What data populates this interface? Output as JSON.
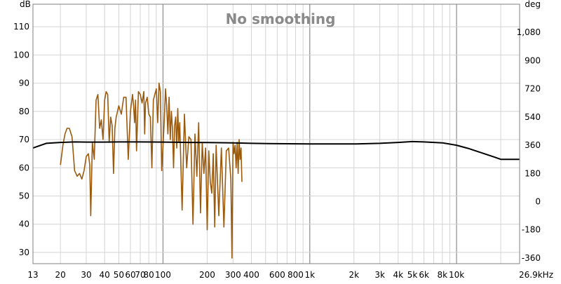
{
  "chart_data": {
    "type": "line",
    "title": "No smoothing",
    "left_unit": "dB",
    "right_unit": "deg",
    "x_scale": "log",
    "xlim": [
      13,
      26900
    ],
    "ylim_left": [
      26,
      118
    ],
    "ylim_right": [
      -396,
      1260
    ],
    "left_ticks": [
      30,
      40,
      50,
      60,
      70,
      80,
      90,
      100,
      110
    ],
    "right_ticks": [
      -360,
      -180,
      0,
      180,
      360,
      540,
      720,
      900,
      1080
    ],
    "right_tick_labels": [
      "-360",
      "-180",
      "0",
      "180",
      "360",
      "540",
      "720",
      "900",
      "1,080"
    ],
    "x_ticks": [
      13,
      20,
      30,
      40,
      50,
      60,
      70,
      80,
      100,
      200,
      300,
      400,
      600,
      800,
      1000,
      2000,
      3000,
      4000,
      5000,
      6000,
      8000,
      10000,
      26900
    ],
    "x_tick_labels": [
      "13",
      "20",
      "30",
      "40",
      "50",
      "60",
      "70",
      "80",
      "100",
      "200",
      "300",
      "400",
      "600",
      "800",
      "1k",
      "2k",
      "3k",
      "4k",
      "5k",
      "6k",
      "8k",
      "10k",
      "26.9kHz"
    ],
    "grid": true,
    "series": [
      {
        "color": "#9c5a0c",
        "axis": "left",
        "x": [
          20,
          20.8,
          21.5,
          22.2,
          23,
          24,
          25,
          26,
          27,
          28,
          29,
          30,
          31,
          31.7,
          32.2,
          33,
          34,
          35,
          36,
          37,
          38,
          39,
          40,
          41,
          42,
          43,
          44,
          45,
          46,
          47,
          48,
          49,
          50,
          52,
          54,
          56,
          58,
          60,
          62,
          63,
          64,
          65,
          66,
          68,
          70,
          72,
          74,
          75,
          76,
          78,
          80,
          82,
          84,
          86,
          88,
          90,
          92,
          94,
          96,
          98,
          100,
          102,
          104,
          106,
          108,
          110,
          112,
          114,
          116,
          118,
          120,
          122,
          124,
          126,
          128,
          130,
          135,
          140,
          145,
          150,
          155,
          160,
          165,
          170,
          175,
          180,
          185,
          190,
          195,
          200,
          205,
          210,
          215,
          220,
          225,
          230,
          240,
          250,
          260,
          270,
          280,
          290,
          295,
          300,
          305,
          310,
          315,
          320,
          325,
          330,
          335,
          340,
          345
        ],
        "y": [
          61,
          68,
          72,
          74,
          74,
          71,
          59,
          57,
          58,
          56,
          59,
          64,
          65,
          61,
          43,
          69,
          63,
          84,
          86,
          74,
          77,
          70,
          84,
          87,
          86,
          69,
          78,
          75,
          58,
          74,
          78,
          80,
          82,
          79,
          85,
          85,
          63,
          80,
          86,
          82,
          76,
          84,
          66,
          87,
          86,
          83,
          87,
          72,
          83,
          85,
          79,
          78,
          60,
          84,
          86,
          88,
          76,
          90,
          87,
          59,
          68,
          77,
          88,
          82,
          72,
          85,
          70,
          80,
          74,
          60,
          75,
          78,
          67,
          81,
          69,
          76,
          45,
          79,
          60,
          71,
          70,
          40,
          72,
          57,
          76,
          44,
          69,
          58,
          67,
          38,
          66,
          55,
          51,
          65,
          39,
          68,
          43,
          67,
          39,
          66,
          67,
          56,
          28,
          69,
          65,
          68,
          60,
          69,
          58,
          70,
          63,
          67,
          55
        ]
      },
      {
        "color": "#000000",
        "axis": "right",
        "x": [
          13,
          16,
          20,
          25,
          30,
          40,
          50,
          70,
          100,
          150,
          200,
          300,
          400,
          600,
          1000,
          2000,
          3000,
          4000,
          5000,
          6000,
          8000,
          10000,
          12000,
          15000,
          18000,
          20000,
          26900
        ],
        "y": [
          342,
          372,
          378,
          381,
          380,
          380,
          381,
          381,
          380,
          378,
          377,
          375,
          372,
          370,
          368,
          368,
          372,
          378,
          383,
          381,
          375,
          360,
          340,
          310,
          285,
          270,
          270
        ]
      }
    ]
  }
}
